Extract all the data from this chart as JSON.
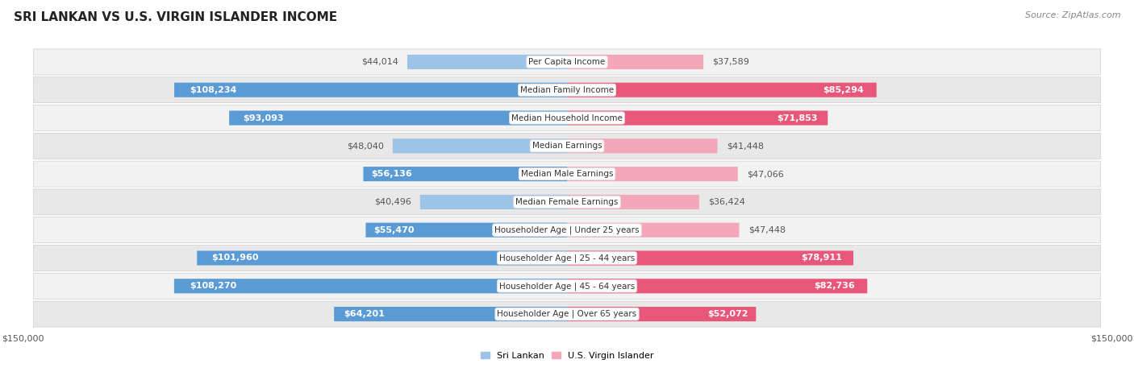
{
  "title": "SRI LANKAN VS U.S. VIRGIN ISLANDER INCOME",
  "source": "Source: ZipAtlas.com",
  "categories": [
    "Per Capita Income",
    "Median Family Income",
    "Median Household Income",
    "Median Earnings",
    "Median Male Earnings",
    "Median Female Earnings",
    "Householder Age | Under 25 years",
    "Householder Age | 25 - 44 years",
    "Householder Age | 45 - 64 years",
    "Householder Age | Over 65 years"
  ],
  "sri_lankan": [
    44014,
    108234,
    93093,
    48040,
    56136,
    40496,
    55470,
    101960,
    108270,
    64201
  ],
  "virgin_islander": [
    37589,
    85294,
    71853,
    41448,
    47066,
    36424,
    47448,
    78911,
    82736,
    52072
  ],
  "max_val": 150000,
  "sri_lankan_color_dark": "#5b9bd5",
  "sri_lankan_color_light": "#9dc3e6",
  "virgin_islander_color_dark": "#e8567a",
  "virgin_islander_color_light": "#f4a7b9",
  "sri_lankan_label": "Sri Lankan",
  "virgin_islander_label": "U.S. Virgin Islander",
  "background_color": "#ffffff",
  "row_bg_even": "#f2f2f2",
  "row_bg_odd": "#e8e8e8",
  "value_color_inside": "#ffffff",
  "value_color_outside": "#555555",
  "title_fontsize": 11,
  "source_fontsize": 8,
  "bar_label_fontsize": 8,
  "category_fontsize": 7.5,
  "legend_fontsize": 8,
  "axis_label_fontsize": 8,
  "inside_threshold": 50000
}
